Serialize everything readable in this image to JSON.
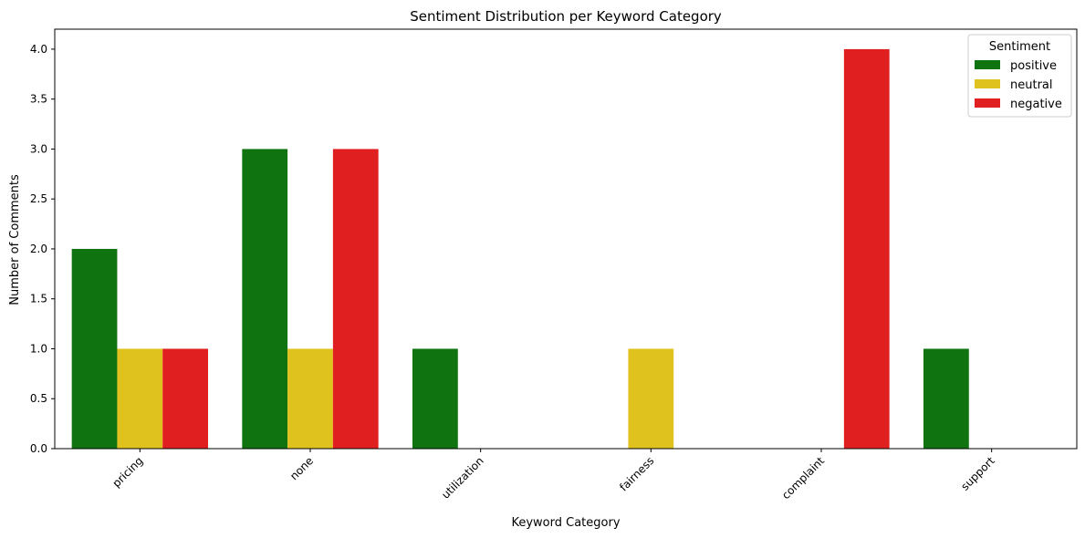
{
  "chart_data": {
    "type": "bar",
    "title": "Sentiment Distribution per Keyword Category",
    "xlabel": "Keyword Category",
    "ylabel": "Number of Comments",
    "categories": [
      "pricing",
      "none",
      "utilization",
      "fairness",
      "complaint",
      "support"
    ],
    "series": [
      {
        "name": "positive",
        "color": "#0f730f",
        "values": [
          2,
          3,
          1,
          0,
          0,
          1
        ]
      },
      {
        "name": "neutral",
        "color": "#e0c21e",
        "values": [
          1,
          1,
          0,
          1,
          0,
          0
        ]
      },
      {
        "name": "negative",
        "color": "#e02020",
        "values": [
          1,
          3,
          0,
          0,
          4,
          0
        ]
      }
    ],
    "ylim": [
      0,
      4.2
    ],
    "yticks": [
      "0.0",
      "0.5",
      "1.0",
      "1.5",
      "2.0",
      "2.5",
      "3.0",
      "3.5",
      "4.0"
    ],
    "legend": {
      "title": "Sentiment",
      "placement": "top-right"
    },
    "grid": false
  }
}
